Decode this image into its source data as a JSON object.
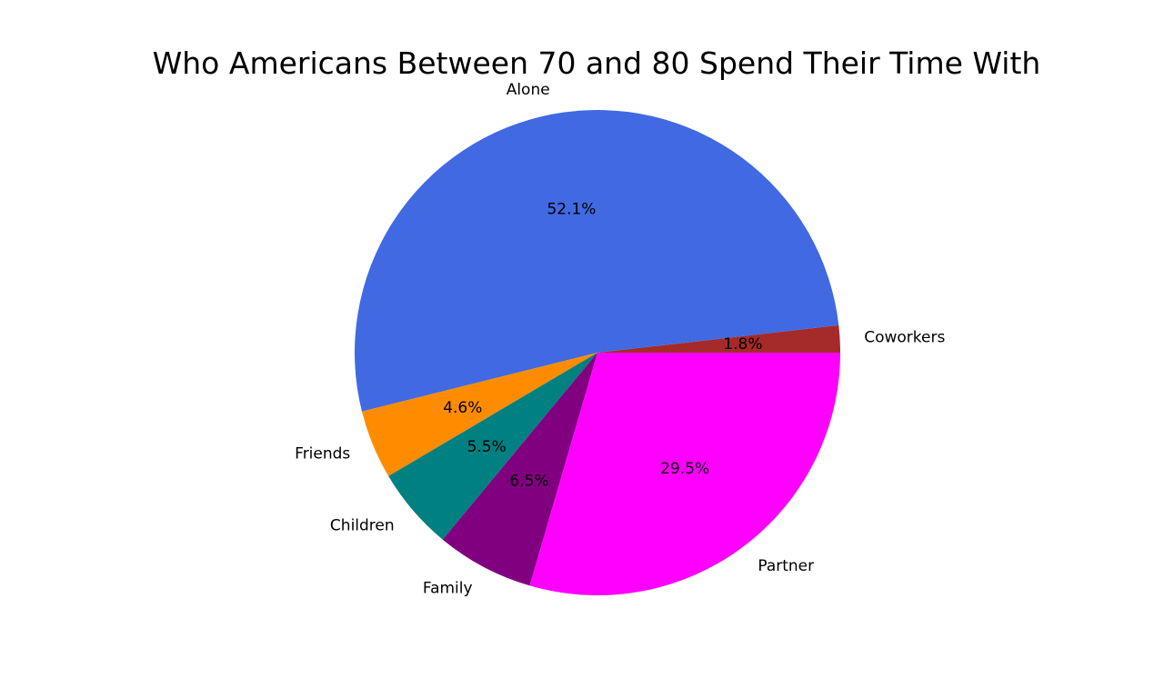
{
  "chart_data": {
    "type": "pie",
    "title": "Who Americans Between 70 and 80 Spend Their Time With",
    "slices": [
      {
        "label": "Coworkers",
        "value": 1.8,
        "pct_label": "1.8%",
        "color": "#A52A2A"
      },
      {
        "label": "Alone",
        "value": 52.1,
        "pct_label": "52.1%",
        "color": "#4169E1"
      },
      {
        "label": "Friends",
        "value": 4.6,
        "pct_label": "4.6%",
        "color": "#FF8C00"
      },
      {
        "label": "Children",
        "value": 5.5,
        "pct_label": "5.5%",
        "color": "#008080"
      },
      {
        "label": "Family",
        "value": 6.5,
        "pct_label": "6.5%",
        "color": "#800080"
      },
      {
        "label": "Partner",
        "value": 29.5,
        "pct_label": "29.5%",
        "color": "#FF00FF"
      }
    ],
    "start_angle_deg": 0,
    "direction": "counterclockwise",
    "legend": "none"
  }
}
